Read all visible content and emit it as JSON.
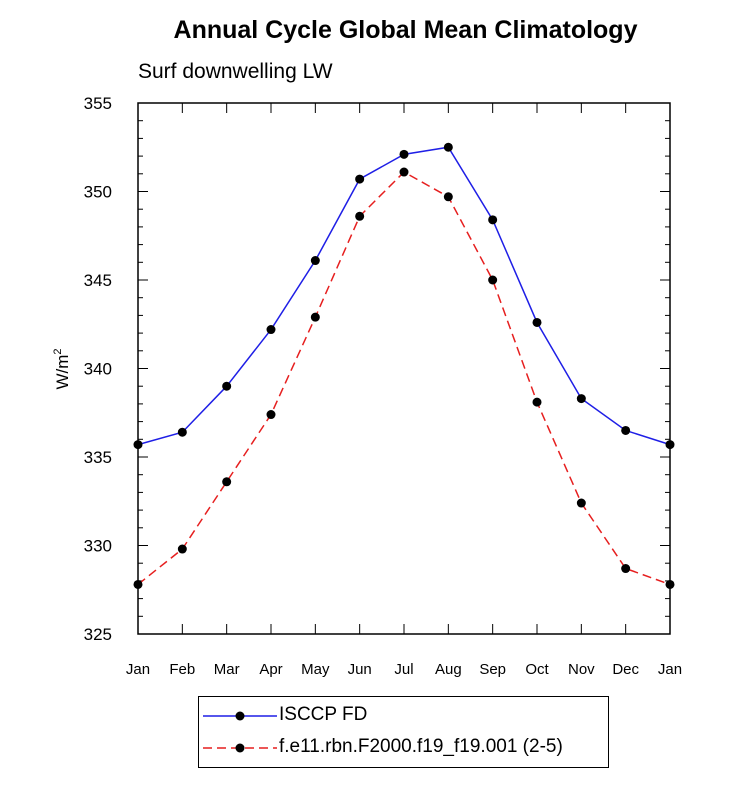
{
  "chart_data": {
    "type": "line",
    "title": "Annual Cycle Global Mean Climatology",
    "subtitle": "Surf downwelling LW",
    "xlabel": "",
    "ylabel": "W/m",
    "ylabel_superscript": "2",
    "ylim": [
      325,
      355
    ],
    "yticks": [
      325,
      330,
      335,
      340,
      345,
      350,
      355
    ],
    "categories": [
      "Jan",
      "Feb",
      "Mar",
      "Apr",
      "May",
      "Jun",
      "Jul",
      "Aug",
      "Sep",
      "Oct",
      "Nov",
      "Dec",
      "Jan"
    ],
    "series": [
      {
        "name": "ISCCP FD",
        "color": "#1f1fe6",
        "dash": "solid",
        "values": [
          335.7,
          336.4,
          339.0,
          342.2,
          346.1,
          350.7,
          352.1,
          352.5,
          348.4,
          342.6,
          338.3,
          336.5,
          335.7
        ]
      },
      {
        "name": "f.e11.rbn.F2000.f19_f19.001 (2-5)",
        "color": "#e61f1f",
        "dash": "dashed",
        "values": [
          327.8,
          329.8,
          333.6,
          337.4,
          342.9,
          348.6,
          351.1,
          349.7,
          345.0,
          338.1,
          332.4,
          328.7,
          327.8
        ]
      }
    ],
    "legend_position": "bottom-center"
  }
}
